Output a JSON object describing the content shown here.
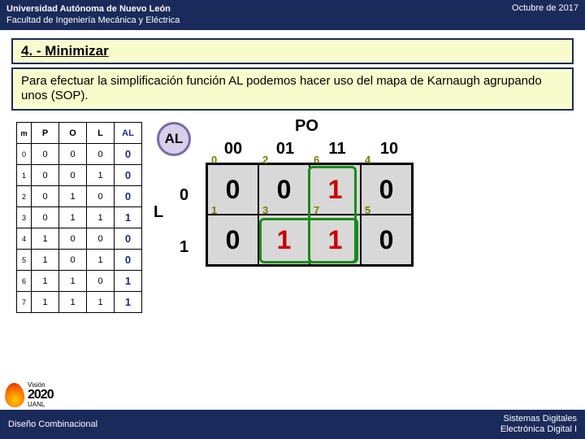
{
  "header": {
    "university": "Universidad Autónoma de Nuevo León",
    "faculty": "Facultad de Ingeniería Mecánica y Eléctrica",
    "date": "Octubre de 2017"
  },
  "title": "4. - Minimizar",
  "body": "Para efectuar la simplificación función AL podemos hacer uso del mapa de Karnaugh agrupando unos (SOP).",
  "truth_table": {
    "headers": {
      "m": "m",
      "p": "P",
      "o": "O",
      "l": "L",
      "al": "AL"
    },
    "rows": [
      {
        "m": "0",
        "p": "0",
        "o": "0",
        "l": "0",
        "al": "0"
      },
      {
        "m": "1",
        "p": "0",
        "o": "0",
        "l": "1",
        "al": "0"
      },
      {
        "m": "2",
        "p": "0",
        "o": "1",
        "l": "0",
        "al": "0"
      },
      {
        "m": "3",
        "p": "0",
        "o": "1",
        "l": "1",
        "al": "1"
      },
      {
        "m": "4",
        "p": "1",
        "o": "0",
        "l": "0",
        "al": "0"
      },
      {
        "m": "5",
        "p": "1",
        "o": "0",
        "l": "1",
        "al": "0"
      },
      {
        "m": "6",
        "p": "1",
        "o": "1",
        "l": "0",
        "al": "1"
      },
      {
        "m": "7",
        "p": "1",
        "o": "1",
        "l": "1",
        "al": "1"
      }
    ]
  },
  "kmap": {
    "al_label": "AL",
    "po_label": "PO",
    "l_label": "L",
    "col_headers": [
      "00",
      "01",
      "11",
      "10"
    ],
    "row_headers": [
      "0",
      "1"
    ],
    "cells": [
      {
        "mt": "0",
        "val": "0",
        "red": false
      },
      {
        "mt": "2",
        "val": "0",
        "red": false
      },
      {
        "mt": "6",
        "val": "1",
        "red": true
      },
      {
        "mt": "4",
        "val": "0",
        "red": false
      },
      {
        "mt": "1",
        "val": "0",
        "red": false
      },
      {
        "mt": "3",
        "val": "1",
        "red": true
      },
      {
        "mt": "7",
        "val": "1",
        "red": true
      },
      {
        "mt": "5",
        "val": "0",
        "red": false
      }
    ]
  },
  "footer": {
    "left": "Diseño Combinacional",
    "right1": "Sistemas Digitales",
    "right2": "Electrónica Digital I",
    "year_small": "Visión",
    "year_big": "2020",
    "year_uanl": "UANL"
  },
  "colors": {
    "bar": "#1a2a5a",
    "box_bg": "#f8fccc",
    "kmap_bg": "#d8d8d8",
    "one_color": "#c00000",
    "minterm_color": "#7a7a00",
    "group_border": "#1a8a1a",
    "al_border": "#7a6aa8"
  }
}
